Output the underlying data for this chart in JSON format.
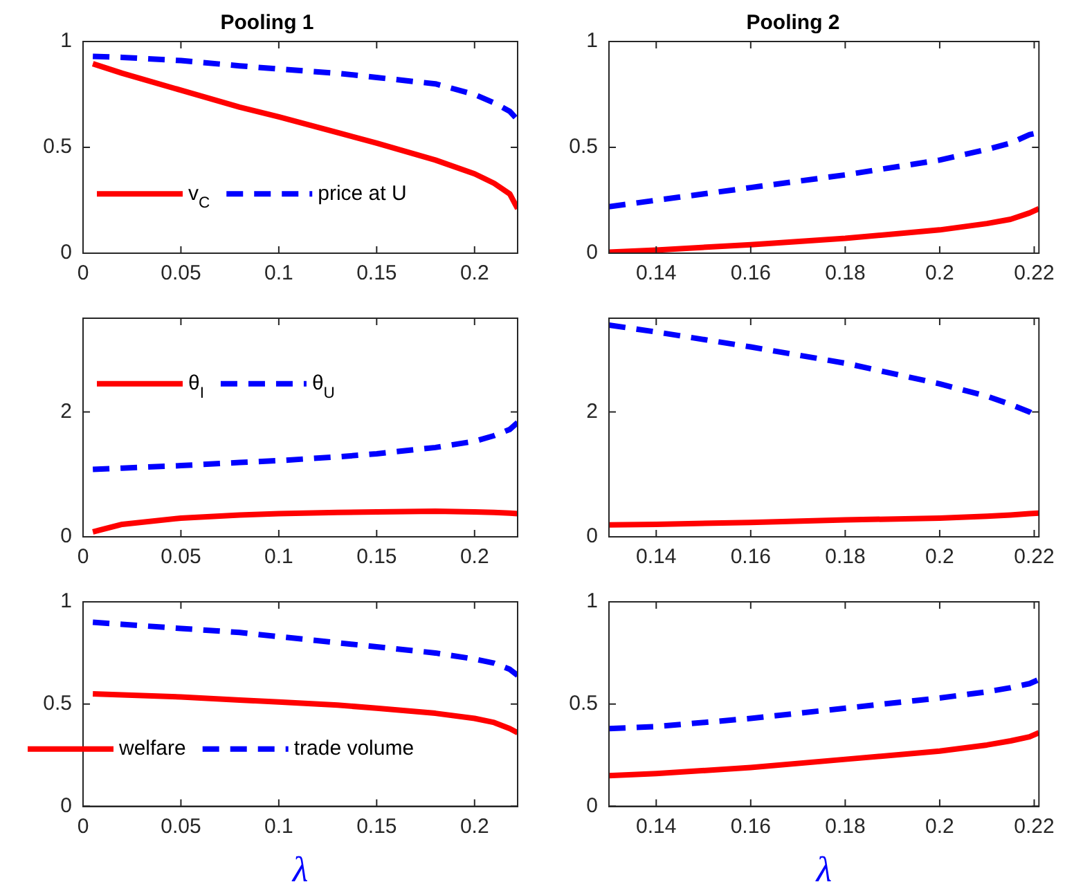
{
  "chart_data": [
    {
      "type": "line",
      "title": "Pooling 1",
      "x": [
        0.005,
        0.02,
        0.05,
        0.08,
        0.1,
        0.13,
        0.15,
        0.18,
        0.2,
        0.21,
        0.218,
        0.222
      ],
      "xlim": [
        0,
        0.222
      ],
      "xticks": [
        0,
        0.05,
        0.1,
        0.15,
        0.2
      ],
      "ylim": [
        0,
        1
      ],
      "yticks": [
        0,
        0.5,
        1
      ],
      "grid": false,
      "legend": "bottom left",
      "marker": "none",
      "series": [
        {
          "name": "v$_{C}$",
          "color": "#ff0000",
          "line_style": "solid",
          "values": [
            0.895,
            0.85,
            0.77,
            0.69,
            0.644,
            0.57,
            0.52,
            0.44,
            0.375,
            0.33,
            0.28,
            0.21
          ]
        },
        {
          "name": "price at U",
          "color": "#0000ff",
          "line_style": "dashed",
          "values": [
            0.93,
            0.925,
            0.91,
            0.885,
            0.87,
            0.85,
            0.83,
            0.8,
            0.75,
            0.71,
            0.67,
            0.63
          ]
        }
      ]
    },
    {
      "type": "line",
      "title": "Pooling 2",
      "x": [
        0.13,
        0.14,
        0.16,
        0.18,
        0.2,
        0.21,
        0.215,
        0.219,
        0.221
      ],
      "xlim": [
        0.13,
        0.221
      ],
      "xticks": [
        0.14,
        0.16,
        0.18,
        0.2,
        0.22
      ],
      "ylim": [
        0,
        1
      ],
      "yticks": [
        0,
        0.5,
        1
      ],
      "grid": false,
      "marker": "none",
      "series": [
        {
          "color": "#ff0000",
          "line_style": "solid",
          "values": [
            0.005,
            0.015,
            0.04,
            0.07,
            0.11,
            0.14,
            0.16,
            0.19,
            0.21
          ]
        },
        {
          "color": "#0000ff",
          "line_style": "dashed",
          "values": [
            0.22,
            0.25,
            0.31,
            0.37,
            0.44,
            0.49,
            0.52,
            0.56,
            0.57
          ]
        }
      ]
    },
    {
      "type": "line",
      "x": [
        0.005,
        0.02,
        0.05,
        0.08,
        0.1,
        0.13,
        0.15,
        0.18,
        0.2,
        0.21,
        0.218,
        0.222
      ],
      "xlim": [
        0,
        0.222
      ],
      "xticks": [
        0,
        0.05,
        0.1,
        0.15,
        0.2
      ],
      "ylim": [
        0,
        3.5
      ],
      "yticks": [
        0,
        2
      ],
      "grid": false,
      "legend": "top left",
      "marker": "none",
      "series": [
        {
          "name": "θ$_{I}$",
          "color": "#ff0000",
          "line_style": "solid",
          "values": [
            0.08,
            0.2,
            0.3,
            0.35,
            0.37,
            0.39,
            0.4,
            0.41,
            0.4,
            0.39,
            0.38,
            0.37
          ]
        },
        {
          "name": "θ$_{U}$",
          "color": "#0000ff",
          "line_style": "dashed",
          "values": [
            1.08,
            1.1,
            1.14,
            1.19,
            1.22,
            1.28,
            1.33,
            1.43,
            1.53,
            1.62,
            1.72,
            1.83
          ]
        }
      ]
    },
    {
      "type": "line",
      "x": [
        0.13,
        0.14,
        0.16,
        0.18,
        0.2,
        0.21,
        0.215,
        0.219,
        0.221
      ],
      "xlim": [
        0.13,
        0.221
      ],
      "xticks": [
        0.14,
        0.16,
        0.18,
        0.2,
        0.22
      ],
      "ylim": [
        0,
        3.5
      ],
      "yticks": [
        0,
        2
      ],
      "grid": false,
      "marker": "none",
      "series": [
        {
          "color": "#ff0000",
          "line_style": "solid",
          "values": [
            0.19,
            0.2,
            0.23,
            0.27,
            0.3,
            0.33,
            0.35,
            0.37,
            0.38
          ]
        },
        {
          "color": "#0000ff",
          "line_style": "dashed",
          "values": [
            3.39,
            3.28,
            3.04,
            2.78,
            2.45,
            2.25,
            2.12,
            2.0,
            1.9
          ]
        }
      ]
    },
    {
      "type": "line",
      "xlabel": "λ",
      "x": [
        0.005,
        0.02,
        0.05,
        0.08,
        0.1,
        0.13,
        0.15,
        0.18,
        0.2,
        0.21,
        0.218,
        0.222
      ],
      "xlim": [
        0,
        0.222
      ],
      "xticks": [
        0,
        0.05,
        0.1,
        0.15,
        0.2
      ],
      "ylim": [
        0,
        1
      ],
      "yticks": [
        0,
        0.5,
        1
      ],
      "grid": false,
      "legend": "bottom left",
      "marker": "none",
      "series": [
        {
          "name": "welfare",
          "color": "#ff0000",
          "line_style": "solid",
          "values": [
            0.55,
            0.545,
            0.535,
            0.52,
            0.51,
            0.495,
            0.48,
            0.455,
            0.43,
            0.41,
            0.38,
            0.36
          ]
        },
        {
          "name": "trade volume",
          "color": "#0000ff",
          "line_style": "dashed",
          "values": [
            0.9,
            0.89,
            0.87,
            0.85,
            0.83,
            0.8,
            0.78,
            0.75,
            0.72,
            0.7,
            0.67,
            0.64
          ]
        }
      ]
    },
    {
      "type": "line",
      "xlabel": "λ",
      "x": [
        0.13,
        0.14,
        0.16,
        0.18,
        0.2,
        0.21,
        0.215,
        0.219,
        0.221
      ],
      "xlim": [
        0.13,
        0.221
      ],
      "xticks": [
        0.14,
        0.16,
        0.18,
        0.2,
        0.22
      ],
      "ylim": [
        0,
        1
      ],
      "yticks": [
        0,
        0.5,
        1
      ],
      "grid": false,
      "marker": "none",
      "series": [
        {
          "color": "#ff0000",
          "line_style": "solid",
          "values": [
            0.15,
            0.16,
            0.19,
            0.23,
            0.27,
            0.3,
            0.32,
            0.34,
            0.36
          ]
        },
        {
          "color": "#0000ff",
          "line_style": "dashed",
          "values": [
            0.38,
            0.39,
            0.43,
            0.48,
            0.53,
            0.56,
            0.58,
            0.6,
            0.62
          ]
        }
      ]
    }
  ]
}
